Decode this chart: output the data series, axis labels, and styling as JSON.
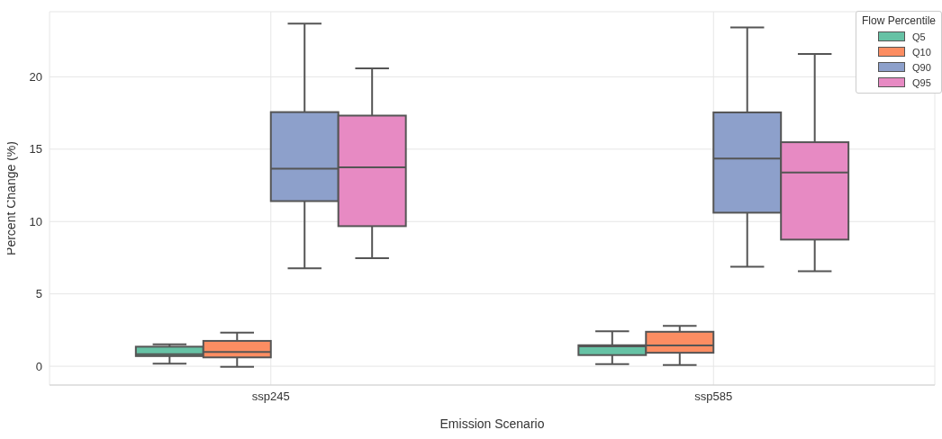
{
  "chart_data": {
    "type": "box",
    "xlabel": "Emission Scenario",
    "ylabel": "Percent Change (%)",
    "legend_title": "Flow Percentile",
    "legend": "top right",
    "grid": true,
    "categories": [
      "ssp245",
      "ssp585"
    ],
    "ylim": [
      -1.3,
      24.5
    ],
    "yticks": [
      0,
      5,
      10,
      15,
      20
    ],
    "series": [
      {
        "name": "Q5",
        "color": "#66c2a5",
        "boxes": [
          {
            "low": 0.18,
            "q1": 0.7,
            "median": 0.83,
            "q3": 1.35,
            "high": 1.51
          },
          {
            "low": 0.14,
            "q1": 0.77,
            "median": 1.37,
            "q3": 1.45,
            "high": 2.42
          }
        ]
      },
      {
        "name": "Q10",
        "color": "#fc8d62",
        "boxes": [
          {
            "low": -0.04,
            "q1": 0.61,
            "median": 0.99,
            "q3": 1.75,
            "high": 2.32
          },
          {
            "low": 0.08,
            "q1": 0.93,
            "median": 1.43,
            "q3": 2.38,
            "high": 2.78
          }
        ]
      },
      {
        "name": "Q90",
        "color": "#8da0cb",
        "boxes": [
          {
            "low": 6.77,
            "q1": 11.41,
            "median": 13.65,
            "q3": 17.56,
            "high": 23.67
          },
          {
            "low": 6.88,
            "q1": 10.61,
            "median": 14.35,
            "q3": 17.54,
            "high": 23.41
          }
        ]
      },
      {
        "name": "Q95",
        "color": "#e78ac3",
        "boxes": [
          {
            "low": 7.46,
            "q1": 9.68,
            "median": 13.75,
            "q3": 17.32,
            "high": 20.58
          },
          {
            "low": 6.57,
            "q1": 8.75,
            "median": 13.39,
            "q3": 15.48,
            "high": 21.58
          }
        ]
      }
    ]
  }
}
